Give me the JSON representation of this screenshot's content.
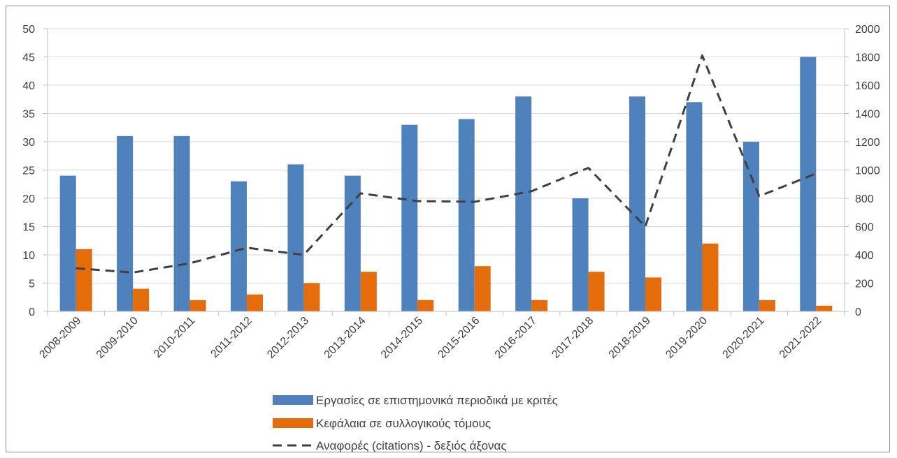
{
  "chart_data": {
    "type": "bar",
    "categories": [
      "2008-2009",
      "2009-2010",
      "2010-2011",
      "2011-2012",
      "2012-2013",
      "2013-2014",
      "2014-2015",
      "2015-2016",
      "2016-2017",
      "2017-2018",
      "2018-2019",
      "2019-2020",
      "2020-2021",
      "2021-2022"
    ],
    "series": [
      {
        "name": "Εργασίες σε επιστημονικά περιοδικά με κριτές",
        "type": "bar",
        "axis": "left",
        "color": "#4f81bd",
        "values": [
          24,
          31,
          31,
          23,
          26,
          24,
          33,
          34,
          38,
          20,
          38,
          37,
          30,
          45
        ]
      },
      {
        "name": "Κεφάλαια σε συλλογικούς τόμους",
        "type": "bar",
        "axis": "left",
        "color": "#e46c0a",
        "values": [
          11,
          4,
          2,
          3,
          5,
          7,
          2,
          8,
          2,
          7,
          6,
          12,
          2,
          1
        ]
      },
      {
        "name": "Αναφορές (citations) - δεξιός άξονας",
        "type": "line",
        "dash": "dashed",
        "axis": "right",
        "color": "#404040",
        "values": [
          305,
          275,
          340,
          450,
          400,
          835,
          780,
          775,
          850,
          1015,
          600,
          1810,
          815,
          975
        ]
      }
    ],
    "y_left": {
      "min": 0,
      "max": 50,
      "ticks": [
        0,
        5,
        10,
        15,
        20,
        25,
        30,
        35,
        40,
        45,
        50
      ]
    },
    "y_right": {
      "min": 0,
      "max": 2000,
      "ticks": [
        0,
        200,
        400,
        600,
        800,
        1000,
        1200,
        1400,
        1600,
        1800,
        2000
      ]
    },
    "grid": true,
    "legend_position": "bottom",
    "title": "",
    "xlabel": "",
    "ylabel": ""
  }
}
